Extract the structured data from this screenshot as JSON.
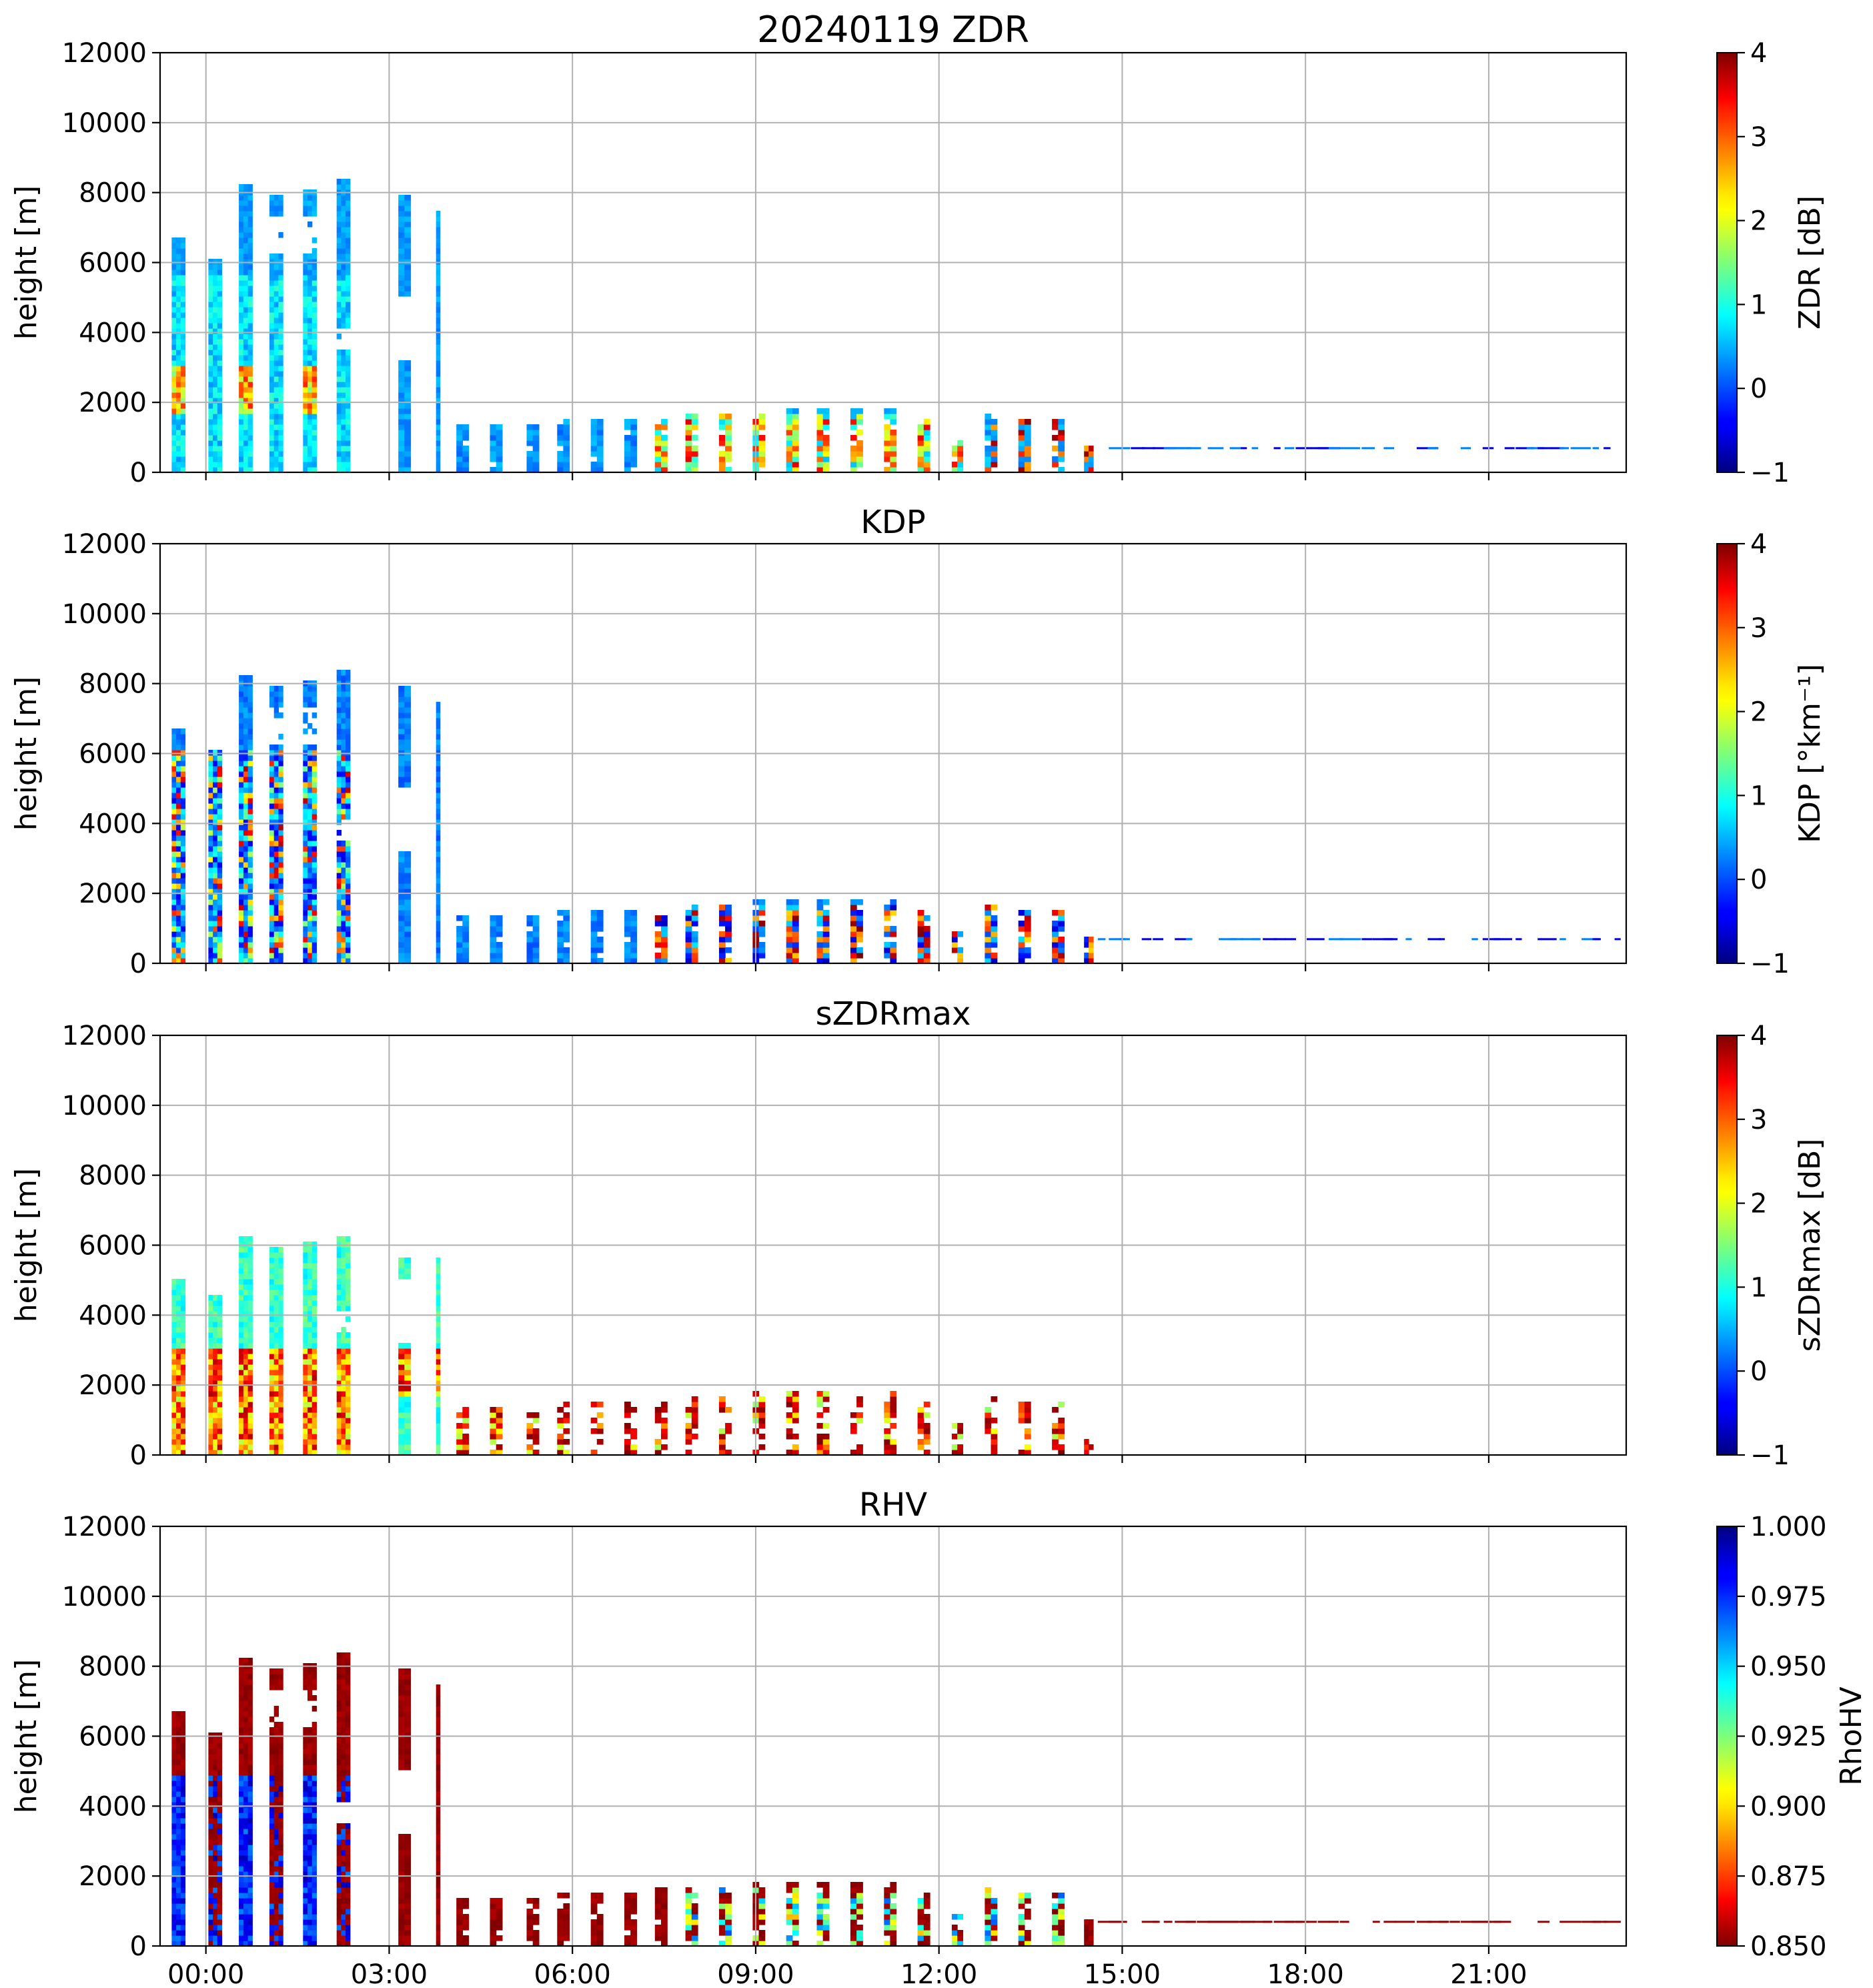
{
  "chart_data": [
    {
      "type": "heatmap",
      "title": "20240119 ZDR",
      "ylabel": "height [m]",
      "xlabel": "",
      "ylim": [
        0,
        12000
      ],
      "yticks": [
        "0",
        "2000",
        "4000",
        "6000",
        "8000",
        "10000",
        "12000"
      ],
      "xlim_hours": [
        -0.75,
        23.25
      ],
      "xtick_hours": [
        0,
        3,
        6,
        9,
        12,
        15,
        18,
        21
      ],
      "colorbar": {
        "label": "ZDR [dB]",
        "min": -1,
        "max": 4,
        "ticks": [
          "−1",
          "0",
          "1",
          "2",
          "3",
          "4"
        ],
        "colormap": "jet",
        "reversed": false
      },
      "field": "zdr"
    },
    {
      "type": "heatmap",
      "title": "KDP",
      "ylabel": "height [m]",
      "xlabel": "",
      "ylim": [
        0,
        12000
      ],
      "yticks": [
        "0",
        "2000",
        "4000",
        "6000",
        "8000",
        "10000",
        "12000"
      ],
      "xlim_hours": [
        -0.75,
        23.25
      ],
      "xtick_hours": [
        0,
        3,
        6,
        9,
        12,
        15,
        18,
        21
      ],
      "colorbar": {
        "label": "KDP [°km⁻¹]",
        "min": -1,
        "max": 4,
        "ticks": [
          "−1",
          "0",
          "1",
          "2",
          "3",
          "4"
        ],
        "colormap": "jet",
        "reversed": false
      },
      "field": "kdp"
    },
    {
      "type": "heatmap",
      "title": "sZDRmax",
      "ylabel": "height [m]",
      "xlabel": "",
      "ylim": [
        0,
        12000
      ],
      "yticks": [
        "0",
        "2000",
        "4000",
        "6000",
        "8000",
        "10000",
        "12000"
      ],
      "xlim_hours": [
        -0.75,
        23.25
      ],
      "xtick_hours": [
        0,
        3,
        6,
        9,
        12,
        15,
        18,
        21
      ],
      "colorbar": {
        "label": "sZDRmax [dB]",
        "min": -1,
        "max": 4,
        "ticks": [
          "−1",
          "0",
          "1",
          "2",
          "3",
          "4"
        ],
        "colormap": "jet",
        "reversed": false
      },
      "field": "szdr"
    },
    {
      "type": "heatmap",
      "title": "RHV",
      "ylabel": "height [m]",
      "xlabel": "",
      "ylim": [
        0,
        12000
      ],
      "yticks": [
        "0",
        "2000",
        "4000",
        "6000",
        "8000",
        "10000",
        "12000"
      ],
      "xlim_hours": [
        -0.75,
        23.25
      ],
      "xtick_hours": [
        0,
        3,
        6,
        9,
        12,
        15,
        18,
        21
      ],
      "xtick_labels": [
        "00:00",
        "03:00",
        "06:00",
        "09:00",
        "12:00",
        "15:00",
        "18:00",
        "21:00"
      ],
      "colorbar": {
        "label": "RhoHV",
        "min": 0.85,
        "max": 1.0,
        "ticks": [
          "0.850",
          "0.875",
          "0.900",
          "0.925",
          "0.950",
          "0.975",
          "1.000"
        ],
        "colormap": "jet",
        "reversed": true
      },
      "field": "rhv"
    }
  ],
  "scans": [
    {
      "t": -0.45,
      "top": 6700,
      "w": 0.22
    },
    {
      "t": 0.15,
      "top": 6000,
      "w": 0.22
    },
    {
      "t": 0.65,
      "top": 8200,
      "w": 0.22
    },
    {
      "t": 1.15,
      "top": 7800,
      "w": 0.22
    },
    {
      "t": 1.7,
      "top": 8000,
      "w": 0.22
    },
    {
      "t": 2.25,
      "top": 8300,
      "w": 0.22
    },
    {
      "t": 3.25,
      "top": 7800,
      "w": 0.2
    },
    {
      "t": 3.8,
      "top": 7400,
      "w": 0.05
    },
    {
      "t": 4.2,
      "top": 1300,
      "w": 0.2
    },
    {
      "t": 4.75,
      "top": 1300,
      "w": 0.2
    },
    {
      "t": 5.35,
      "top": 1300,
      "w": 0.2
    },
    {
      "t": 5.85,
      "top": 1400,
      "w": 0.2
    },
    {
      "t": 6.4,
      "top": 1400,
      "w": 0.2
    },
    {
      "t": 6.95,
      "top": 1400,
      "w": 0.2
    },
    {
      "t": 7.45,
      "top": 1550,
      "w": 0.2
    },
    {
      "t": 7.95,
      "top": 1600,
      "w": 0.2
    },
    {
      "t": 8.5,
      "top": 1600,
      "w": 0.2
    },
    {
      "t": 9.05,
      "top": 1700,
      "w": 0.2
    },
    {
      "t": 9.6,
      "top": 1750,
      "w": 0.2
    },
    {
      "t": 10.1,
      "top": 1800,
      "w": 0.2
    },
    {
      "t": 10.65,
      "top": 1750,
      "w": 0.2
    },
    {
      "t": 11.2,
      "top": 1700,
      "w": 0.2
    },
    {
      "t": 11.75,
      "top": 1400,
      "w": 0.2
    },
    {
      "t": 12.3,
      "top": 800,
      "w": 0.18
    },
    {
      "t": 12.85,
      "top": 1600,
      "w": 0.2
    },
    {
      "t": 13.4,
      "top": 1500,
      "w": 0.2
    },
    {
      "t": 13.95,
      "top": 1400,
      "w": 0.2
    },
    {
      "t": 14.45,
      "top": 700,
      "w": 0.15
    }
  ]
}
